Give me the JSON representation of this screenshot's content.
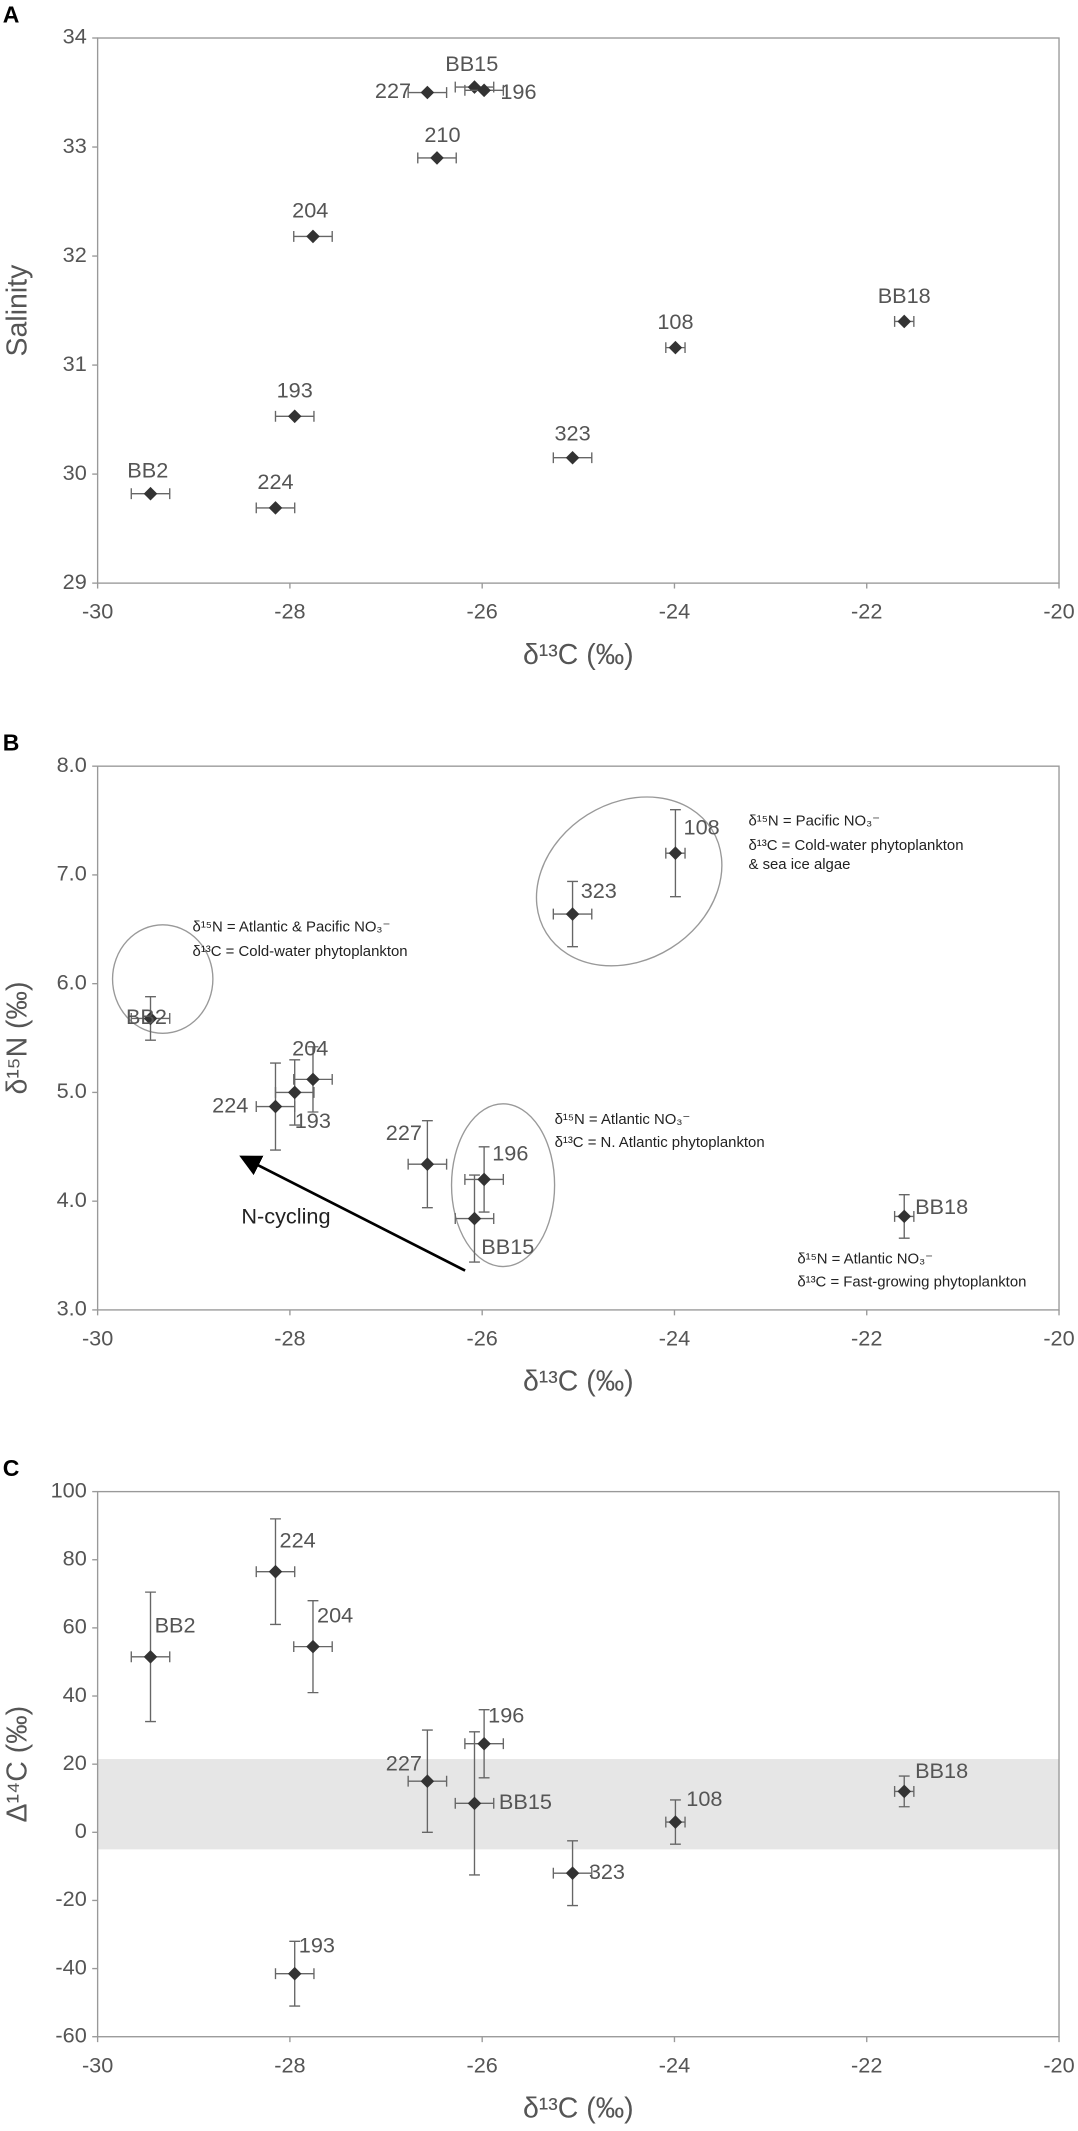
{
  "chart_data": [
    {
      "type": "scatter",
      "panel": "A",
      "xlabel": "δ¹³C (‰)",
      "ylabel": "Salinity",
      "xlim": [
        -30,
        -20
      ],
      "xticks": [
        -30,
        -28,
        -26,
        -24,
        -22,
        -20
      ],
      "ylim": [
        29,
        34
      ],
      "yticks": [
        29,
        30,
        31,
        32,
        33,
        34
      ],
      "series": [
        {
          "color": "#333333",
          "labels": [
            "227",
            "BB15",
            "196",
            "210",
            "204",
            "193",
            "BB2",
            "224",
            "323",
            "108",
            "BB18"
          ],
          "x": [
            -26.57,
            -26.08,
            -25.98,
            -26.47,
            -27.76,
            -27.95,
            -29.45,
            -28.15,
            -25.06,
            -23.99,
            -21.61
          ],
          "values": [
            33.5,
            33.55,
            33.52,
            32.9,
            32.18,
            30.53,
            29.82,
            29.69,
            30.15,
            31.16,
            31.4
          ],
          "xerr": [
            0.2,
            0.2,
            0.2,
            0.2,
            0.2,
            0.2,
            0.2,
            0.2,
            0.2,
            0.1,
            0.1
          ]
        }
      ]
    },
    {
      "type": "scatter",
      "panel": "B",
      "xlabel": "δ¹³C (‰)",
      "ylabel": "δ¹⁵N (‰)",
      "xlim": [
        -30,
        -20
      ],
      "xticks": [
        -30,
        -28,
        -26,
        -24,
        -22,
        -20
      ],
      "ylim": [
        3,
        8
      ],
      "yticks": [
        {
          "value": 3,
          "label": "3.0"
        },
        {
          "value": 4,
          "label": "4.0"
        },
        {
          "value": 5,
          "label": "5.0"
        },
        {
          "value": 6,
          "label": "6.0"
        },
        {
          "value": 7,
          "label": "7.0"
        },
        {
          "value": 8,
          "label": "8.0"
        }
      ],
      "annotations": [
        "δ¹⁵N = Pacific NO₃⁻",
        "δ¹³C = Cold-water phytoplankton",
        "& sea ice algae",
        "δ¹⁵N = Atlantic & Pacific NO₃⁻",
        "δ¹³C = Cold-water phytoplankton",
        "δ¹⁵N = Atlantic NO₃⁻",
        "δ¹³C = N. Atlantic phytoplankton",
        "δ¹⁵N = Atlantic NO₃⁻",
        "δ¹³C = Fast-growing phytoplankton",
        "N-cycling"
      ],
      "series": [
        {
          "color": "#333333",
          "labels": [
            "BB2",
            "224",
            "193",
            "204",
            "227",
            "BB15",
            "196",
            "323",
            "108",
            "BB18"
          ],
          "x": [
            -29.45,
            -28.15,
            -27.95,
            -27.76,
            -26.57,
            -26.08,
            -25.98,
            -25.06,
            -23.99,
            -21.61
          ],
          "values": [
            5.68,
            4.87,
            5.0,
            5.12,
            4.34,
            3.84,
            4.2,
            6.64,
            7.2,
            3.86
          ],
          "xerr": [
            0.2,
            0.2,
            0.2,
            0.2,
            0.2,
            0.2,
            0.2,
            0.2,
            0.1,
            0.1
          ],
          "yerr": [
            0.2,
            0.4,
            0.3,
            0.3,
            0.4,
            0.4,
            0.3,
            0.3,
            0.4,
            0.2
          ]
        }
      ]
    },
    {
      "type": "scatter",
      "panel": "C",
      "xlabel": "δ¹³C (‰)",
      "ylabel": "Δ¹⁴C (‰)",
      "xlim": [
        -30,
        -20
      ],
      "xticks": [
        -30,
        -28,
        -26,
        -24,
        -22,
        -20
      ],
      "ylim": [
        -60,
        100
      ],
      "yticks": [
        -60,
        -40,
        -20,
        0,
        20,
        40,
        60,
        80,
        100
      ],
      "band": [
        -5,
        21.5
      ],
      "band_color": "#e6e6e6",
      "series": [
        {
          "color": "#333333",
          "labels": [
            "BB2",
            "224",
            "204",
            "227",
            "BB15",
            "196",
            "323",
            "108",
            "BB18",
            "193"
          ],
          "x": [
            -29.45,
            -28.15,
            -27.76,
            -26.57,
            -26.08,
            -25.98,
            -25.06,
            -23.99,
            -21.61,
            -27.95
          ],
          "values": [
            51.5,
            76.5,
            54.5,
            15,
            8.5,
            26,
            -12,
            3,
            12,
            -41.5
          ],
          "xerr": [
            0.2,
            0.2,
            0.2,
            0.2,
            0.2,
            0.2,
            0.2,
            0.1,
            0.1,
            0.2
          ],
          "yerr": [
            19,
            15.5,
            13.5,
            15,
            21,
            10,
            9.5,
            6.5,
            4.5,
            9.5
          ]
        }
      ]
    }
  ]
}
